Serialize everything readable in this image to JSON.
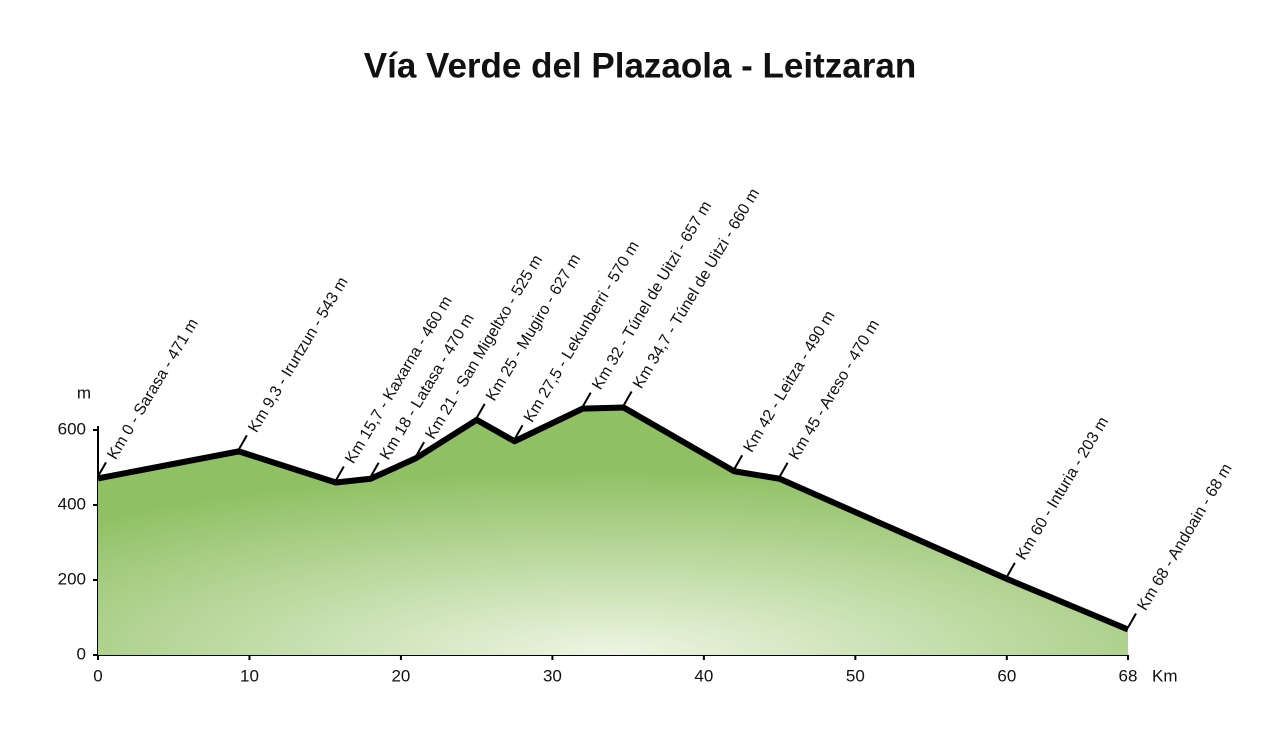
{
  "chart_data": {
    "type": "area",
    "title": "Vía Verde del Plazaola - Leitzaran",
    "x_label": "Km",
    "y_label": "m",
    "x": [
      0,
      9.3,
      15.7,
      18,
      21,
      25,
      27.5,
      32,
      34.7,
      42,
      45,
      60,
      68
    ],
    "values": [
      471,
      543,
      460,
      470,
      525,
      627,
      570,
      657,
      660,
      490,
      470,
      203,
      68
    ],
    "value_labels": [
      "Km 0 - Sarasa - 471 m",
      "Km 9,3 - Irurtzun - 543 m",
      "Km 15,7 - Kaxarna - 460 m",
      "Km 18 - Latasa - 470 m",
      "Km 21 - San Migeltxo - 525 m",
      "Km 25 - Mugiro - 627 m",
      "Km 27,5 - Lekunberri - 570 m",
      "Km 32 - Túnel de Uitzi - 657 m",
      "Km 34,7 - Túnel de Uitzi - 660 m",
      "Km 42 - Leitza - 490 m",
      "Km 45 - Areso - 470 m",
      "Km 60 - Inturia - 203 m",
      "Km 68 - Andoain - 68 m"
    ],
    "color": "#8fc063",
    "xlim": [
      0,
      68
    ],
    "xticks": [
      0,
      10,
      20,
      30,
      40,
      50,
      60,
      68
    ],
    "ylim": [
      0,
      600
    ],
    "yticks": [
      0,
      200,
      400,
      600
    ]
  }
}
